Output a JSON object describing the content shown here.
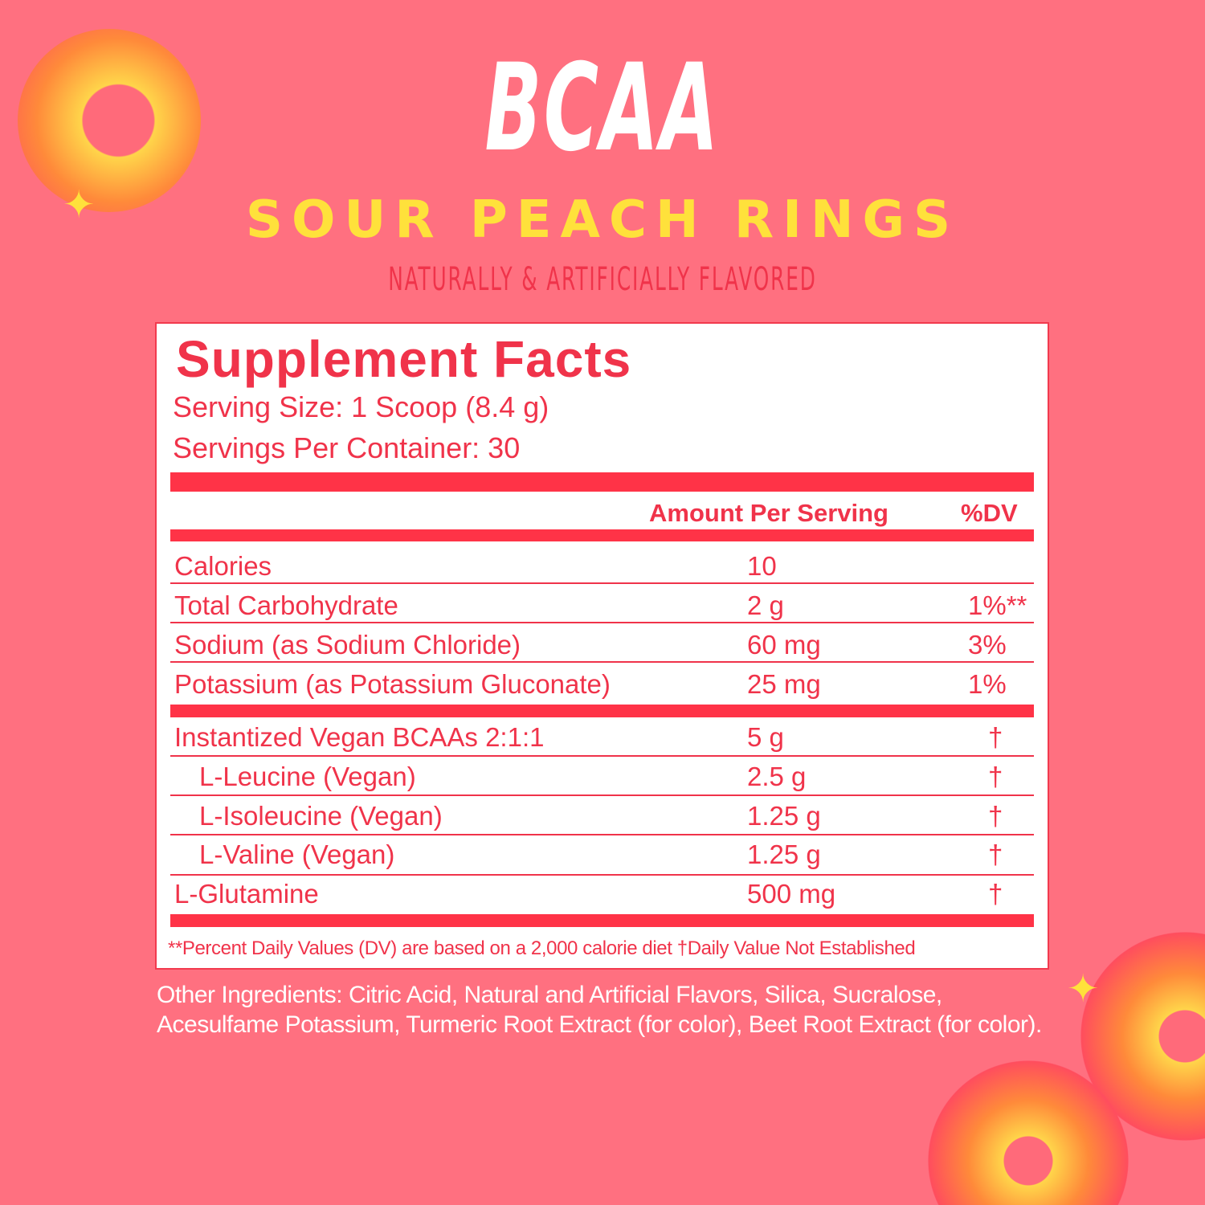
{
  "brand": "BCAA",
  "flavor": "SOUR PEACH RINGS",
  "subtitle": "NATURALLY & ARTIFICIALLY FLAVORED",
  "colors": {
    "background": "#ff7080",
    "accent_red": "#ff3347",
    "yellow": "#ffe13b",
    "white": "#ffffff"
  },
  "facts": {
    "title": "Supplement Facts",
    "serving_size": "Serving Size: 1 Scoop (8.4 g)",
    "servings_per_container": "Servings Per Container: 30",
    "header_amount": "Amount Per Serving",
    "header_dv": "%DV",
    "group1": [
      {
        "name": "Calories",
        "amount": "10",
        "dv": ""
      },
      {
        "name": "Total Carbohydrate",
        "amount": "2 g",
        "dv": "1%**"
      },
      {
        "name": "Sodium (as Sodium Chloride)",
        "amount": "60 mg",
        "dv": "3%"
      },
      {
        "name": "Potassium (as Potassium Gluconate)",
        "amount": "25 mg",
        "dv": "1%"
      }
    ],
    "group2": [
      {
        "name": "Instantized Vegan BCAAs 2:1:1",
        "amount": "5 g",
        "dv": "†"
      },
      {
        "name": "L-Leucine (Vegan)",
        "amount": "2.5 g",
        "dv": "†"
      },
      {
        "name": "L-Isoleucine (Vegan)",
        "amount": "1.25 g",
        "dv": "†"
      },
      {
        "name": "L-Valine (Vegan)",
        "amount": "1.25 g",
        "dv": "†"
      },
      {
        "name": "L-Glutamine",
        "amount": "500 mg",
        "dv": "†"
      }
    ],
    "footnote": "**Percent Daily Values (DV) are based on a 2,000 calorie diet  †Daily Value Not Established"
  },
  "other_ingredients": "Other Ingredients: Citric Acid, Natural and Artificial Flavors, Silica, Sucralose, Acesulfame Potassium, Turmeric Root Extract (for color), Beet Root Extract (for color).",
  "decorations": [
    "peach-ring-candy-icon",
    "sparkle-icon"
  ]
}
